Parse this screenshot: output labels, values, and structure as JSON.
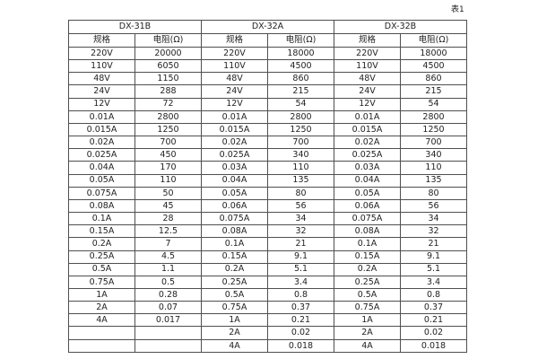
{
  "caption": "表1",
  "table": {
    "groups": [
      {
        "label": "DX-31B"
      },
      {
        "label": "DX-32A"
      },
      {
        "label": "DX-32B"
      }
    ],
    "sub_headers": [
      "规格",
      "电阻(Ω)"
    ],
    "rows": [
      [
        "220V",
        "20000",
        "220V",
        "18000",
        "220V",
        "18000"
      ],
      [
        "110V",
        "6050",
        "110V",
        "4500",
        "110V",
        "4500"
      ],
      [
        "48V",
        "1150",
        "48V",
        "860",
        "48V",
        "860"
      ],
      [
        "24V",
        "288",
        "24V",
        "215",
        "24V",
        "215"
      ],
      [
        "12V",
        "72",
        "12V",
        "54",
        "12V",
        "54"
      ],
      [
        "0.01A",
        "2800",
        "0.01A",
        "2800",
        "0.01A",
        "2800"
      ],
      [
        "0.015A",
        "1250",
        "0.015A",
        "1250",
        "0.015A",
        "1250"
      ],
      [
        "0.02A",
        "700",
        "0.02A",
        "700",
        "0.02A",
        "700"
      ],
      [
        "0.025A",
        "450",
        "0.025A",
        "340",
        "0.025A",
        "340"
      ],
      [
        "0.04A",
        "170",
        "0.03A",
        "110",
        "0.03A",
        "110"
      ],
      [
        "0.05A",
        "110",
        "0.04A",
        "135",
        "0.04A",
        "135"
      ],
      [
        "0.075A",
        "50",
        "0.05A",
        "80",
        "0.05A",
        "80"
      ],
      [
        "0.08A",
        "45",
        "0.06A",
        "56",
        "0.06A",
        "56"
      ],
      [
        "0.1A",
        "28",
        "0.075A",
        "34",
        "0.075A",
        "34"
      ],
      [
        "0.15A",
        "12.5",
        "0.08A",
        "32",
        "0.08A",
        "32"
      ],
      [
        "0.2A",
        "7",
        "0.1A",
        "21",
        "0.1A",
        "21"
      ],
      [
        "0.25A",
        "4.5",
        "0.15A",
        "9.1",
        "0.15A",
        "9.1"
      ],
      [
        "0.5A",
        "1.1",
        "0.2A",
        "5.1",
        "0.2A",
        "5.1"
      ],
      [
        "0.75A",
        "0.5",
        "0.25A",
        "3.4",
        "0.25A",
        "3.4"
      ],
      [
        "1A",
        "0.28",
        "0.5A",
        "0.8",
        "0.5A",
        "0.8"
      ],
      [
        "2A",
        "0.07",
        "0.75A",
        "0.37",
        "0.75A",
        "0.37"
      ],
      [
        "4A",
        "0.017",
        "1A",
        "0.21",
        "1A",
        "0.21"
      ],
      [
        "",
        "",
        "2A",
        "0.02",
        "2A",
        "0.02"
      ],
      [
        "",
        "",
        "4A",
        "0.018",
        "4A",
        "0.018"
      ]
    ]
  }
}
